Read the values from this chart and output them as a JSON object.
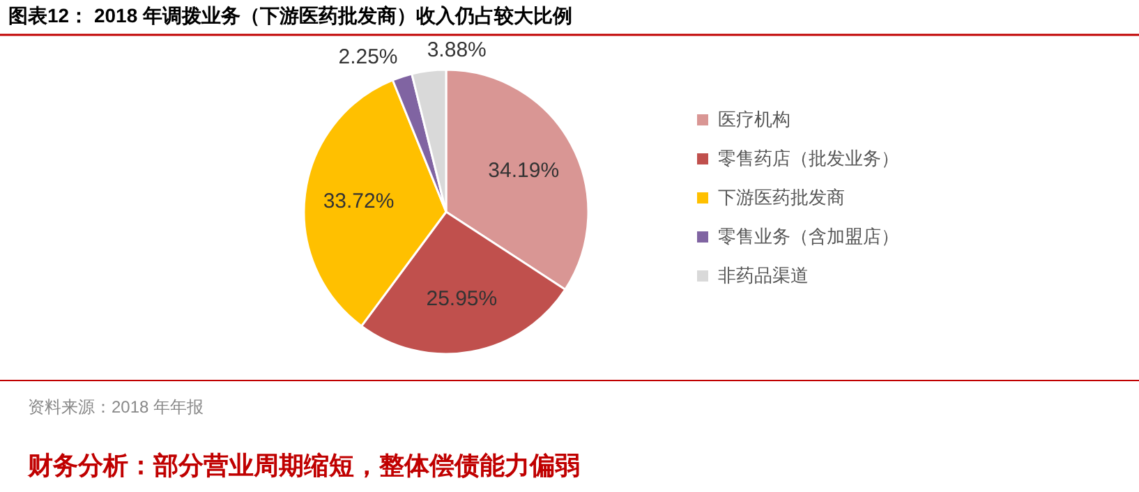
{
  "chart_data": {
    "type": "pie",
    "title": "图表12：  2018 年调拨业务（下游医药批发商）收入仍占较大比例",
    "categories": [
      "医疗机构",
      "零售药店（批发业务）",
      "下游医药批发商",
      "零售业务（含加盟店）",
      "非药品渠道"
    ],
    "values": [
      34.19,
      25.95,
      33.72,
      2.25,
      3.88
    ],
    "colors": [
      "#d99694",
      "#c0504d",
      "#ffc000",
      "#8064a2",
      "#d9d9d9"
    ],
    "value_labels": [
      "34.19%",
      "25.95%",
      "33.72%",
      "2.25%",
      "3.88%"
    ],
    "legend": "right",
    "annotations": [
      "资料来源：2018 年年报",
      "财务分析：部分营业周期缩短，整体偿债能力偏弱"
    ]
  }
}
